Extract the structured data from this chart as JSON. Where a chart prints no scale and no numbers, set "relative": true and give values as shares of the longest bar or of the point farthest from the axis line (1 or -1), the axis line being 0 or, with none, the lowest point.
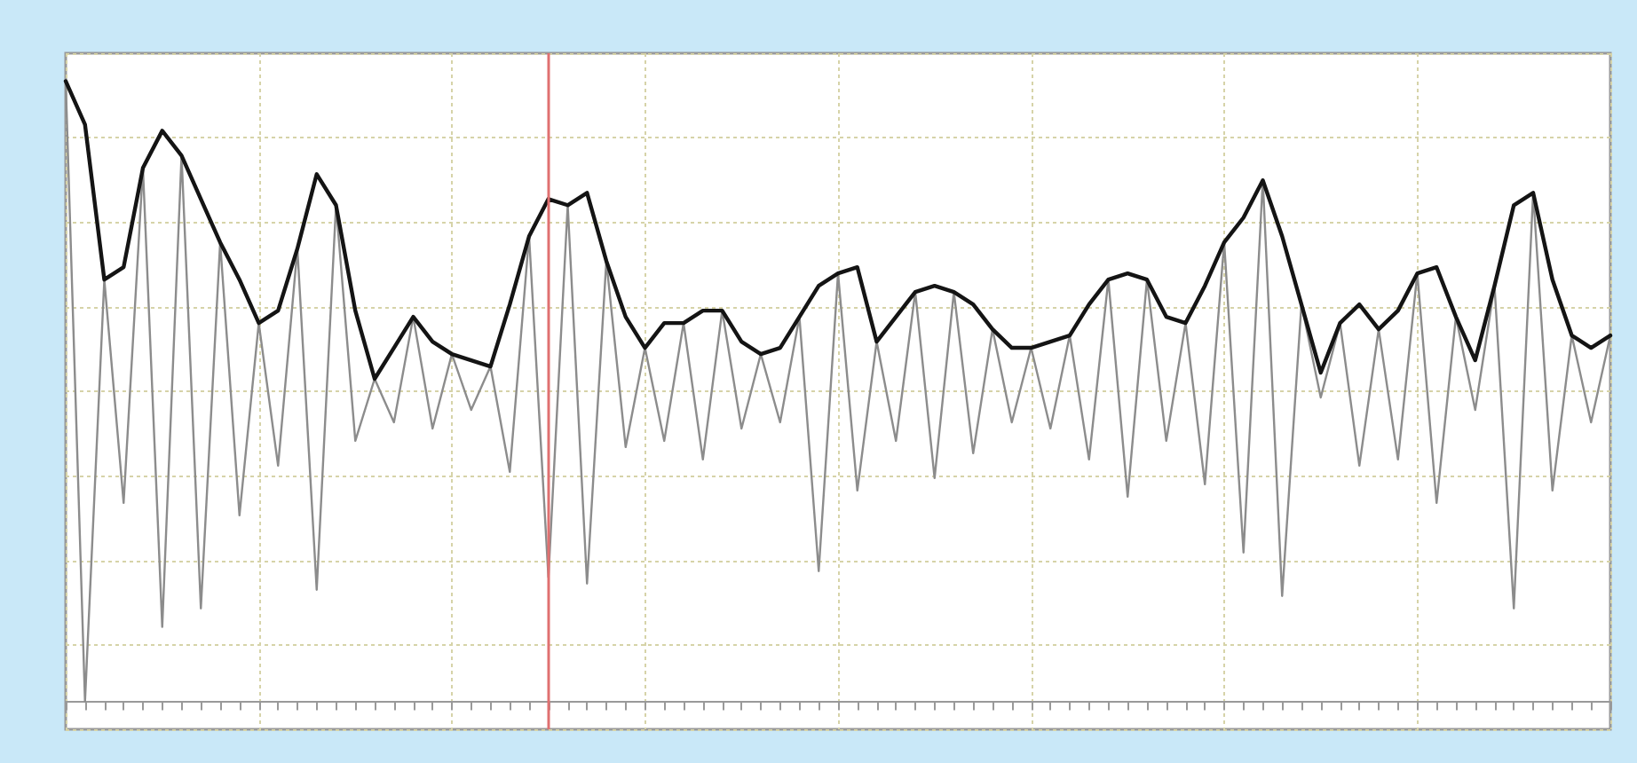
{
  "chart_data": {
    "type": "line",
    "relative": true,
    "categories": [
      null,
      null,
      null,
      null,
      null,
      null,
      null,
      null,
      null,
      null,
      null,
      null,
      null,
      null,
      null,
      null,
      null,
      null,
      null,
      null,
      null,
      null,
      null,
      null,
      null,
      null,
      null,
      null,
      null,
      null,
      null,
      null,
      null,
      null,
      null,
      null,
      null,
      null,
      null,
      null,
      null,
      null,
      null,
      null,
      null,
      null,
      null,
      null,
      null,
      null,
      null,
      null,
      null,
      null,
      null,
      null,
      null,
      null,
      null,
      null,
      null,
      null,
      null,
      null,
      null,
      null,
      null,
      null,
      null,
      null,
      null,
      null,
      null,
      null,
      null,
      null,
      null,
      null,
      null,
      null,
      null
    ],
    "series": [
      {
        "color": "#8c8c8c",
        "values": [
          1.0,
          0.0,
          0.68,
          0.32,
          0.86,
          0.12,
          0.88,
          0.15,
          0.74,
          0.3,
          0.61,
          0.38,
          0.73,
          0.18,
          0.8,
          0.42,
          0.52,
          0.45,
          0.62,
          0.44,
          0.56,
          0.47,
          0.54,
          0.37,
          0.75,
          0.2,
          0.8,
          0.19,
          0.71,
          0.41,
          0.57,
          0.42,
          0.61,
          0.39,
          0.63,
          0.44,
          0.56,
          0.45,
          0.62,
          0.21,
          0.69,
          0.34,
          0.58,
          0.42,
          0.66,
          0.36,
          0.66,
          0.4,
          0.6,
          0.45,
          0.57,
          0.44,
          0.59,
          0.39,
          0.68,
          0.33,
          0.68,
          0.42,
          0.61,
          0.35,
          0.74,
          0.24,
          0.84,
          0.17,
          0.64,
          0.49,
          0.61,
          0.38,
          0.6,
          0.39,
          0.69,
          0.32,
          0.62,
          0.47,
          0.67,
          0.15,
          0.82,
          0.34,
          0.59,
          0.45,
          0.59
        ]
      },
      {
        "color": "#141414",
        "values": [
          1.0,
          0.93,
          0.68,
          0.7,
          0.86,
          0.92,
          0.88,
          0.81,
          0.74,
          0.68,
          0.61,
          0.63,
          0.73,
          0.85,
          0.8,
          0.63,
          0.52,
          0.57,
          0.62,
          0.58,
          0.56,
          0.55,
          0.54,
          0.64,
          0.75,
          0.81,
          0.8,
          0.82,
          0.71,
          0.62,
          0.57,
          0.61,
          0.61,
          0.63,
          0.63,
          0.58,
          0.56,
          0.57,
          0.62,
          0.67,
          0.69,
          0.7,
          0.58,
          0.62,
          0.66,
          0.67,
          0.66,
          0.64,
          0.6,
          0.57,
          0.57,
          0.58,
          0.59,
          0.64,
          0.68,
          0.69,
          0.68,
          0.62,
          0.61,
          0.67,
          0.74,
          0.78,
          0.84,
          0.75,
          0.64,
          0.53,
          0.61,
          0.64,
          0.6,
          0.63,
          0.69,
          0.7,
          0.62,
          0.55,
          0.67,
          0.8,
          0.82,
          0.68,
          0.59,
          0.57,
          0.59
        ]
      }
    ],
    "grid": true,
    "marker": "none",
    "line_style": "solid"
  }
}
